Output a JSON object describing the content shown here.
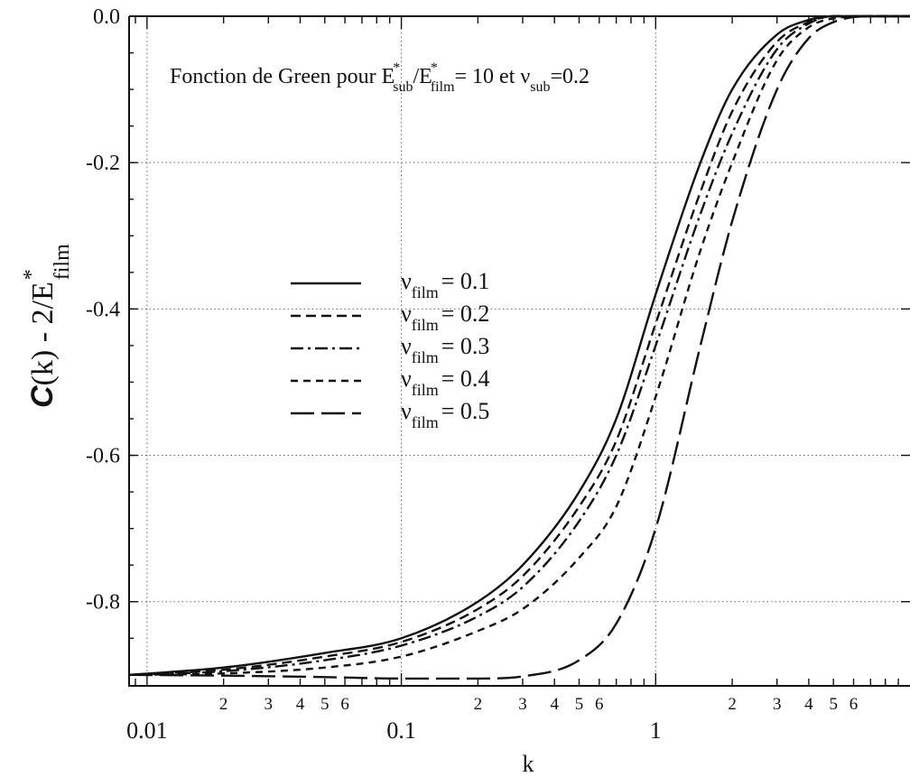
{
  "chart_data": {
    "type": "line",
    "title": {
      "prefix": "Fonction de Green pour E",
      "sup1": "*",
      "sub1": "sub",
      "mid": "/E",
      "sup2": "*",
      "sub2": "film",
      "suffix": "= 10 et ν",
      "sub3": "sub",
      "end": "=0.2"
    },
    "xlabel": "k",
    "ylabel": {
      "italic": "C",
      "text": "(k) - 2/E",
      "sup": "*",
      "sub": "film"
    },
    "xscale": "log",
    "xlim": [
      0.0085,
      10
    ],
    "ylim": [
      -0.915,
      0.0
    ],
    "grid": true,
    "legend_position": "center-left",
    "x_major_ticks": [
      {
        "value": 0.01,
        "label": "0.01"
      },
      {
        "value": 0.1,
        "label": "0.1"
      },
      {
        "value": 1,
        "label": "1"
      }
    ],
    "x_minor_ticks": [
      {
        "value": 0.02,
        "label": "2"
      },
      {
        "value": 0.03,
        "label": "3"
      },
      {
        "value": 0.04,
        "label": "4"
      },
      {
        "value": 0.05,
        "label": "5"
      },
      {
        "value": 0.06,
        "label": "6"
      },
      {
        "value": 0.2,
        "label": "2"
      },
      {
        "value": 0.3,
        "label": "3"
      },
      {
        "value": 0.4,
        "label": "4"
      },
      {
        "value": 0.5,
        "label": "5"
      },
      {
        "value": 0.6,
        "label": "6"
      },
      {
        "value": 2,
        "label": "2"
      },
      {
        "value": 3,
        "label": "3"
      },
      {
        "value": 4,
        "label": "4"
      },
      {
        "value": 5,
        "label": "5"
      },
      {
        "value": 6,
        "label": "6"
      }
    ],
    "y_ticks": [
      {
        "value": 0.0,
        "label": "0.0"
      },
      {
        "value": -0.2,
        "label": "-0.2"
      },
      {
        "value": -0.4,
        "label": "-0.4"
      },
      {
        "value": -0.6,
        "label": "-0.6"
      },
      {
        "value": -0.8,
        "label": "-0.8"
      }
    ],
    "series": [
      {
        "name": {
          "symbol": "ν",
          "sub": "film",
          "text": "= 0.1"
        },
        "style": "solid",
        "x": [
          0.0085,
          0.02,
          0.05,
          0.1,
          0.2,
          0.3,
          0.5,
          0.7,
          1.0,
          1.5,
          2.0,
          3.0,
          4.0,
          5.0,
          7.0,
          10.0
        ],
        "y": [
          -0.9,
          -0.89,
          -0.87,
          -0.85,
          -0.8,
          -0.75,
          -0.65,
          -0.55,
          -0.38,
          -0.2,
          -0.1,
          -0.025,
          -0.005,
          0.0,
          0.0,
          0.0
        ]
      },
      {
        "name": {
          "symbol": "ν",
          "sub": "film",
          "text": "= 0.2"
        },
        "style": "dashed",
        "x": [
          0.0085,
          0.02,
          0.05,
          0.1,
          0.2,
          0.3,
          0.5,
          0.7,
          1.0,
          1.5,
          2.0,
          3.0,
          4.0,
          5.0,
          7.0,
          10.0
        ],
        "y": [
          -0.9,
          -0.893,
          -0.875,
          -0.855,
          -0.81,
          -0.765,
          -0.67,
          -0.58,
          -0.42,
          -0.24,
          -0.13,
          -0.035,
          -0.008,
          0.0,
          0.0,
          0.0
        ]
      },
      {
        "name": {
          "symbol": "ν",
          "sub": "film",
          "text": "= 0.3"
        },
        "style": "dashdot",
        "x": [
          0.0085,
          0.02,
          0.05,
          0.1,
          0.2,
          0.3,
          0.5,
          0.7,
          1.0,
          1.5,
          2.0,
          3.0,
          4.0,
          5.0,
          7.0,
          10.0
        ],
        "y": [
          -0.9,
          -0.895,
          -0.88,
          -0.86,
          -0.82,
          -0.78,
          -0.69,
          -0.6,
          -0.45,
          -0.27,
          -0.16,
          -0.045,
          -0.01,
          0.0,
          0.0,
          0.0
        ]
      },
      {
        "name": {
          "symbol": "ν",
          "sub": "film",
          "text": "= 0.4"
        },
        "style": "shortdash",
        "x": [
          0.0085,
          0.02,
          0.05,
          0.1,
          0.2,
          0.3,
          0.5,
          0.7,
          1.0,
          1.5,
          2.0,
          3.0,
          4.0,
          5.0,
          7.0,
          10.0
        ],
        "y": [
          -0.9,
          -0.898,
          -0.89,
          -0.875,
          -0.84,
          -0.81,
          -0.74,
          -0.67,
          -0.52,
          -0.32,
          -0.2,
          -0.06,
          -0.015,
          -0.003,
          0.0,
          0.0
        ]
      },
      {
        "name": {
          "symbol": "ν",
          "sub": "film",
          "text": "= 0.5"
        },
        "style": "longdash",
        "x": [
          0.0085,
          0.02,
          0.05,
          0.1,
          0.2,
          0.3,
          0.5,
          0.7,
          1.0,
          1.5,
          2.0,
          3.0,
          4.0,
          5.0,
          7.0,
          10.0
        ],
        "y": [
          -0.9,
          -0.901,
          -0.903,
          -0.905,
          -0.905,
          -0.902,
          -0.88,
          -0.83,
          -0.7,
          -0.45,
          -0.28,
          -0.1,
          -0.03,
          -0.008,
          0.0,
          0.0
        ]
      }
    ]
  }
}
